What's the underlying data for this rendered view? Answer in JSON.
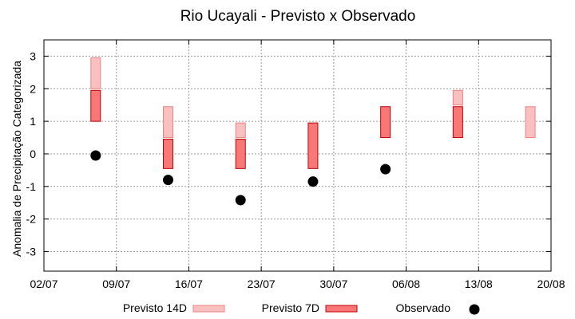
{
  "chart_data": {
    "type": "floating-bar-and-scatter",
    "title": "Rio Ucayali - Previsto x Observado",
    "xlabel": "",
    "ylabel": "Anomalia de Precipitação Categorizada",
    "ylim": [
      -3.6,
      3.5
    ],
    "yticks": [
      -3,
      -2,
      -1,
      0,
      1,
      2,
      3
    ],
    "xlim": [
      "2023-07-02",
      "2023-08-20"
    ],
    "xticks": [
      "02/07",
      "09/07",
      "16/07",
      "23/07",
      "30/07",
      "06/08",
      "13/08",
      "20/08"
    ],
    "grid": true,
    "legend_position": "bottom",
    "series": [
      {
        "name": "Previsto 14D",
        "type": "floating-bar",
        "color": "#f9c0c0",
        "stroke": "#f08080",
        "points": [
          {
            "x": "2023-07-07",
            "low": 2.0,
            "high": 2.95
          },
          {
            "x": "2023-07-14",
            "low": 0.5,
            "high": 1.45
          },
          {
            "x": "2023-07-21",
            "low": 0.5,
            "high": 0.95
          },
          {
            "x": "2023-08-11",
            "low": 1.5,
            "high": 1.95
          },
          {
            "x": "2023-08-18",
            "low": 0.5,
            "high": 1.45
          }
        ]
      },
      {
        "name": "Previsto 7D",
        "type": "floating-bar",
        "color": "#f87878",
        "stroke": "#c00000",
        "points": [
          {
            "x": "2023-07-07",
            "low": 1.0,
            "high": 1.95
          },
          {
            "x": "2023-07-14",
            "low": -0.45,
            "high": 0.45
          },
          {
            "x": "2023-07-21",
            "low": -0.45,
            "high": 0.45
          },
          {
            "x": "2023-07-28",
            "low": -0.45,
            "high": 0.95
          },
          {
            "x": "2023-08-04",
            "low": 0.5,
            "high": 1.45
          },
          {
            "x": "2023-08-11",
            "low": 0.5,
            "high": 1.45
          }
        ]
      },
      {
        "name": "Observado",
        "type": "scatter",
        "color": "#000000",
        "points": [
          {
            "x": "2023-07-07",
            "y": -0.05
          },
          {
            "x": "2023-07-14",
            "y": -0.8
          },
          {
            "x": "2023-07-21",
            "y": -1.42
          },
          {
            "x": "2023-07-28",
            "y": -0.85
          },
          {
            "x": "2023-08-04",
            "y": -0.47
          }
        ]
      }
    ]
  }
}
